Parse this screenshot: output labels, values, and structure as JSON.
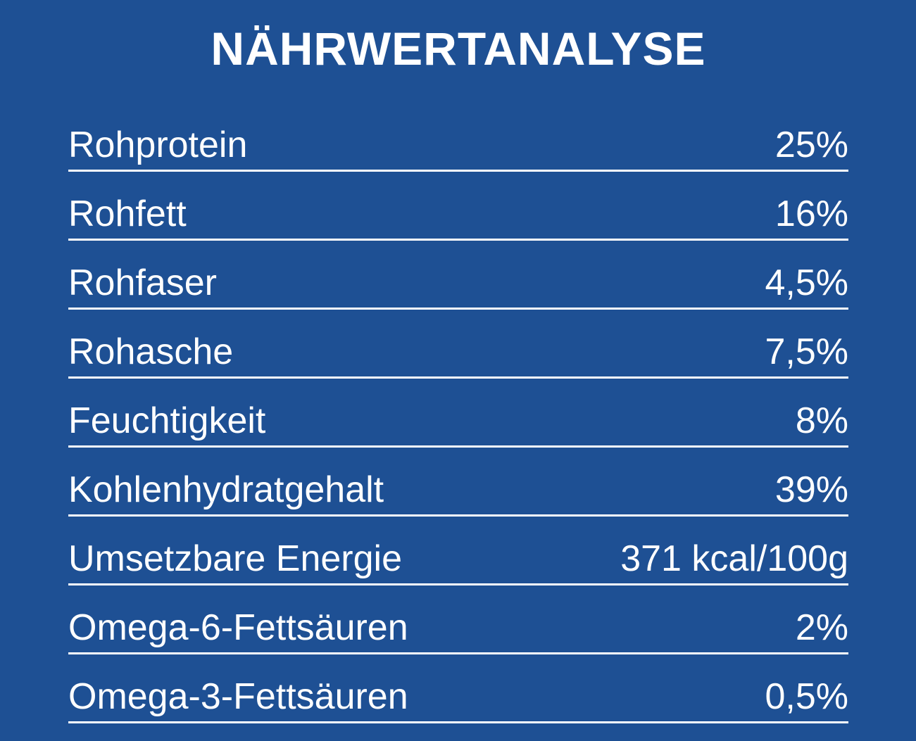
{
  "page": {
    "background_color": "#1e5094",
    "text_color": "#ffffff",
    "divider_color": "#ffffff"
  },
  "title": "NÄHRWERTANALYSE",
  "chart_data": {
    "type": "table",
    "title": "NÄHRWERTANALYSE",
    "rows": [
      {
        "label": "Rohprotein",
        "value": "25%"
      },
      {
        "label": "Rohfett",
        "value": "16%"
      },
      {
        "label": "Rohfaser",
        "value": "4,5%"
      },
      {
        "label": "Rohasche",
        "value": "7,5%"
      },
      {
        "label": "Feuchtigkeit",
        "value": "8%"
      },
      {
        "label": "Kohlenhydratgehalt",
        "value": "39%"
      },
      {
        "label": "Umsetzbare Energie",
        "value": "371 kcal/100g"
      },
      {
        "label": "Omega-6-Fettsäuren",
        "value": "2%"
      },
      {
        "label": "Omega-3-Fettsäuren",
        "value": "0,5%"
      }
    ]
  }
}
